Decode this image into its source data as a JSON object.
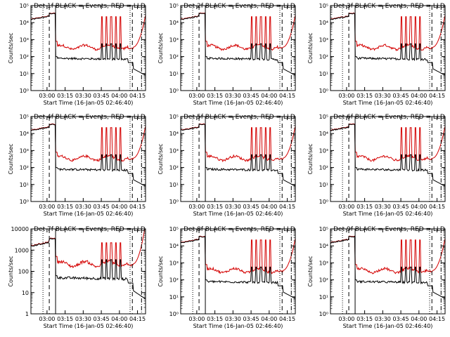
{
  "colors": {
    "events": "#000000",
    "lld": "#d40000",
    "axes": "#000000",
    "background": "#ffffff"
  },
  "chart_data": [
    {
      "type": "line",
      "title": "Det 1f  BLACK = Events, RED = LLD",
      "xlabel": "Start Time (16-Jan-05 02:46:40)",
      "ylabel": "Counts/sec",
      "x_ticks": [
        "03:00",
        "03:15",
        "03:30",
        "03:45",
        "04:00",
        "04:15"
      ],
      "y_log": true,
      "y_ticks": [
        "10⁰",
        "10¹",
        "10²",
        "10³",
        "10⁴",
        "10⁵"
      ],
      "series": [
        {
          "name": "BLACK = Events"
        },
        {
          "name": "RED = LLD"
        }
      ]
    },
    {
      "type": "line",
      "title": "Det 2f  BLACK = Events, RED = LLD",
      "xlabel": "Start Time (16-Jan-05 02:46:40)",
      "ylabel": "Counts/sec",
      "x_ticks": [
        "03:00",
        "03:15",
        "03:30",
        "03:45",
        "04:00",
        "04:15"
      ],
      "y_log": true,
      "y_ticks": [
        "10⁰",
        "10¹",
        "10²",
        "10³",
        "10⁴",
        "10⁵"
      ],
      "series": [
        {
          "name": "BLACK = Events"
        },
        {
          "name": "RED = LLD"
        }
      ]
    },
    {
      "type": "line",
      "title": "Det 3f  BLACK = Events, RED = LLD",
      "xlabel": "Start Time (16-Jan-05 02:46:40)",
      "ylabel": "Counts/sec",
      "x_ticks": [
        "03:00",
        "03:15",
        "03:30",
        "03:45",
        "04:00",
        "04:15"
      ],
      "y_log": true,
      "y_ticks": [
        "10⁰",
        "10¹",
        "10²",
        "10³",
        "10⁴",
        "10⁵"
      ],
      "series": [
        {
          "name": "BLACK = Events"
        },
        {
          "name": "RED = LLD"
        }
      ]
    },
    {
      "type": "line",
      "title": "Det 4f  BLACK = Events, RED = LLD",
      "xlabel": "Start Time (16-Jan-05 02:46:40)",
      "ylabel": "Counts/sec",
      "x_ticks": [
        "03:00",
        "03:15",
        "03:30",
        "03:45",
        "04:00",
        "04:15"
      ],
      "y_log": true,
      "y_ticks": [
        "10⁰",
        "10¹",
        "10²",
        "10³",
        "10⁴",
        "10⁵"
      ],
      "series": [
        {
          "name": "BLACK = Events"
        },
        {
          "name": "RED = LLD"
        }
      ]
    },
    {
      "type": "line",
      "title": "Det 5f  BLACK = Events, RED = LLD",
      "xlabel": "Start Time (16-Jan-05 02:46:40)",
      "ylabel": "Counts/sec",
      "x_ticks": [
        "03:00",
        "03:15",
        "03:30",
        "03:45",
        "04:00",
        "04:15"
      ],
      "y_log": true,
      "y_ticks": [
        "10⁰",
        "10¹",
        "10²",
        "10³",
        "10⁴",
        "10⁵"
      ],
      "series": [
        {
          "name": "BLACK = Events"
        },
        {
          "name": "RED = LLD"
        }
      ]
    },
    {
      "type": "line",
      "title": "Det 6f  BLACK = Events, RED = LLD",
      "xlabel": "Start Time (16-Jan-05 02:46:40)",
      "ylabel": "Counts/sec",
      "x_ticks": [
        "03:00",
        "03:15",
        "03:30",
        "03:45",
        "04:00",
        "04:15"
      ],
      "y_log": true,
      "y_ticks": [
        "10⁰",
        "10¹",
        "10²",
        "10³",
        "10⁴",
        "10⁵"
      ],
      "series": [
        {
          "name": "BLACK = Events"
        },
        {
          "name": "RED = LLD"
        }
      ]
    },
    {
      "type": "line",
      "title": "Det 7f  BLACK = Events, RED = LLD",
      "xlabel": "Start Time (16-Jan-05 02:46:40)",
      "ylabel": "Counts/sec",
      "x_ticks": [
        "03:00",
        "03:15",
        "03:30",
        "03:45",
        "04:00",
        "04:15"
      ],
      "y_log": true,
      "y_ticks": [
        "1",
        "10",
        "100",
        "1000",
        "10000"
      ],
      "series": [
        {
          "name": "BLACK = Events"
        },
        {
          "name": "RED = LLD"
        }
      ]
    },
    {
      "type": "line",
      "title": "Det 8f  BLACK = Events, RED = LLD",
      "xlabel": "Start Time (16-Jan-05 02:46:40)",
      "ylabel": "Counts/sec",
      "x_ticks": [
        "03:00",
        "03:15",
        "03:30",
        "03:45",
        "04:00",
        "04:15"
      ],
      "y_log": true,
      "y_ticks": [
        "10⁰",
        "10¹",
        "10²",
        "10³",
        "10⁴",
        "10⁵"
      ],
      "series": [
        {
          "name": "BLACK = Events"
        },
        {
          "name": "RED = LLD"
        }
      ]
    },
    {
      "type": "line",
      "title": "Det 9f  BLACK = Events, RED = LLD",
      "xlabel": "Start Time (16-Jan-05 02:46:40)",
      "ylabel": "Counts/sec",
      "x_ticks": [
        "03:00",
        "03:15",
        "03:30",
        "03:45",
        "04:00",
        "04:15"
      ],
      "y_log": true,
      "y_ticks": [
        "10⁰",
        "10¹",
        "10²",
        "10³",
        "10⁴",
        "10⁵"
      ],
      "series": [
        {
          "name": "BLACK = Events"
        },
        {
          "name": "RED = LLD"
        }
      ]
    }
  ]
}
